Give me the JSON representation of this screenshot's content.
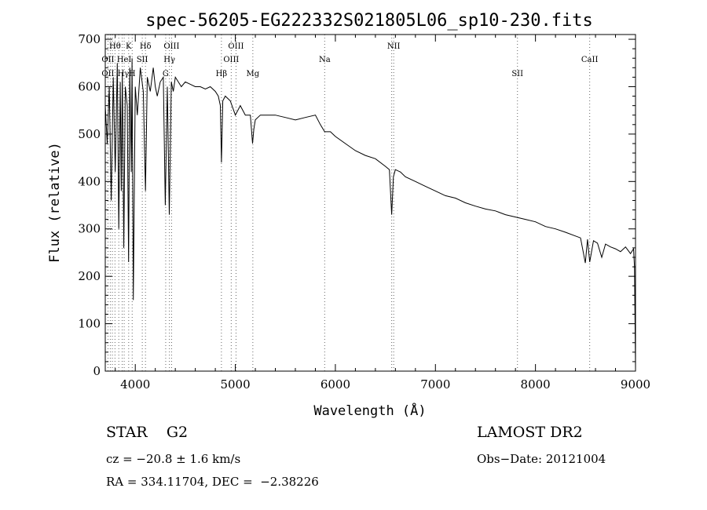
{
  "chart_data": {
    "type": "line",
    "title": "spec-56205-EG222332S021805L06_sp10-230.fits",
    "xlabel": "Wavelength (Å)",
    "ylabel": "Flux (relative)",
    "xlim": [
      3700,
      9000
    ],
    "ylim": [
      0,
      710
    ],
    "xticks": [
      4000,
      5000,
      6000,
      7000,
      8000,
      9000
    ],
    "yticks": [
      0,
      100,
      200,
      300,
      400,
      500,
      600,
      700
    ],
    "grid": false,
    "series": [
      {
        "x": [
          3700,
          3720,
          3740,
          3760,
          3780,
          3800,
          3820,
          3835,
          3850,
          3860,
          3870,
          3885,
          3900,
          3920,
          3933,
          3945,
          3960,
          3968,
          3980,
          4000,
          4020,
          4050,
          4080,
          4102,
          4120,
          4150,
          4180,
          4200,
          4220,
          4250,
          4280,
          4300,
          4320,
          4340,
          4360,
          4380,
          4400,
          4430,
          4460,
          4500,
          4550,
          4600,
          4650,
          4700,
          4750,
          4800,
          4830,
          4850,
          4861,
          4875,
          4900,
          4950,
          5000,
          5050,
          5100,
          5150,
          5172,
          5185,
          5200,
          5250,
          5300,
          5400,
          5500,
          5600,
          5700,
          5800,
          5850,
          5893,
          5950,
          6000,
          6100,
          6200,
          6300,
          6400,
          6500,
          6540,
          6563,
          6580,
          6600,
          6650,
          6700,
          6800,
          6900,
          7000,
          7100,
          7200,
          7300,
          7400,
          7500,
          7600,
          7700,
          7800,
          7900,
          8000,
          8100,
          8200,
          8300,
          8400,
          8450,
          8498,
          8520,
          8542,
          8580,
          8620,
          8662,
          8700,
          8750,
          8800,
          8850,
          8900,
          8950,
          8980,
          8990,
          9000
        ],
        "y": [
          560,
          480,
          600,
          360,
          620,
          420,
          650,
          300,
          610,
          380,
          630,
          260,
          600,
          560,
          230,
          640,
          420,
          660,
          150,
          600,
          540,
          640,
          590,
          380,
          620,
          590,
          640,
          600,
          580,
          610,
          620,
          350,
          600,
          330,
          610,
          590,
          620,
          610,
          600,
          610,
          605,
          600,
          600,
          595,
          600,
          590,
          580,
          560,
          440,
          570,
          580,
          570,
          540,
          560,
          540,
          540,
          480,
          510,
          530,
          540,
          540,
          540,
          535,
          530,
          535,
          540,
          520,
          505,
          505,
          495,
          480,
          465,
          455,
          448,
          432,
          425,
          330,
          410,
          425,
          420,
          410,
          400,
          390,
          380,
          370,
          365,
          355,
          348,
          342,
          338,
          330,
          325,
          320,
          315,
          305,
          300,
          293,
          285,
          281,
          228,
          278,
          230,
          275,
          270,
          240,
          268,
          262,
          258,
          252,
          262,
          248,
          258,
          220,
          5
        ]
      }
    ],
    "annotations": [
      {
        "text": "Hθ",
        "x": 3797,
        "row": 1
      },
      {
        "text": "OII",
        "x": 3727,
        "row": 2
      },
      {
        "text": "OII",
        "x": 3727,
        "row": 3
      },
      {
        "text": "K",
        "x": 3934,
        "row": 1
      },
      {
        "text": "H",
        "x": 3969,
        "row": 3
      },
      {
        "text": "Hδ",
        "x": 4102,
        "row": 1
      },
      {
        "text": "HeI",
        "x": 3889,
        "row": 2
      },
      {
        "text": "SII",
        "x": 4070,
        "row": 2
      },
      {
        "text": "Hγ",
        "x": 3880,
        "row": 3
      },
      {
        "text": "OIII",
        "x": 4363,
        "row": 1
      },
      {
        "text": "Hγ",
        "x": 4341,
        "row": 2
      },
      {
        "text": "G",
        "x": 4304,
        "row": 3
      },
      {
        "text": "OIII",
        "x": 5007,
        "row": 1
      },
      {
        "text": "OIII",
        "x": 4959,
        "row": 2
      },
      {
        "text": "Hβ",
        "x": 4861,
        "row": 3
      },
      {
        "text": "Mg",
        "x": 5175,
        "row": 3
      },
      {
        "text": "Na",
        "x": 5893,
        "row": 2
      },
      {
        "text": "NII",
        "x": 6583,
        "row": 1
      },
      {
        "text": "SII",
        "x": 7820,
        "row": 3
      },
      {
        "text": "CaII",
        "x": 8542,
        "row": 2
      }
    ],
    "line_markers": [
      3727,
      3750,
      3771,
      3797,
      3835,
      3869,
      3889,
      3934,
      3969,
      4070,
      4102,
      4304,
      4341,
      4363,
      4861,
      4959,
      5007,
      5175,
      5893,
      6563,
      6583,
      7820,
      8542
    ]
  },
  "info": {
    "object": "STAR    G2",
    "survey": "LAMOST DR2",
    "cz": "cz = −20.8 ± 1.6 km/s",
    "obsdate": "Obs−Date: 20121004",
    "radec": "RA = 334.11704, DEC =  −2.38226"
  }
}
